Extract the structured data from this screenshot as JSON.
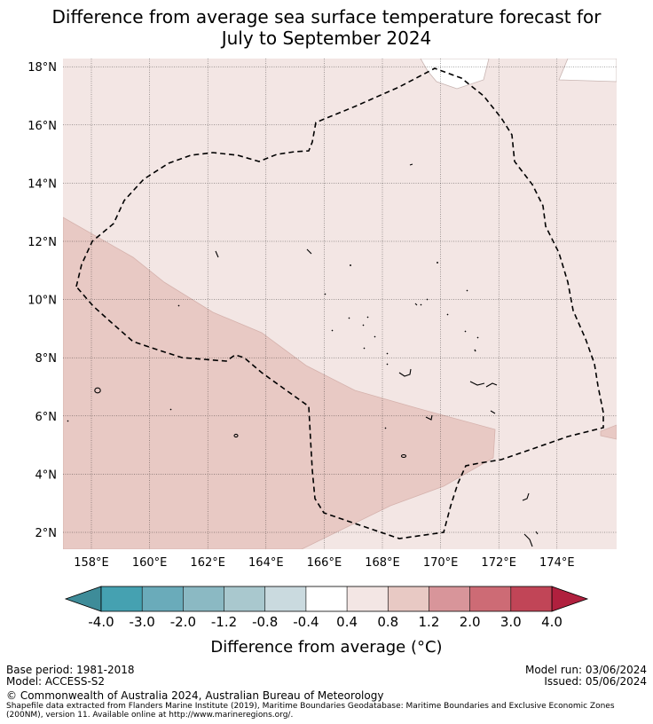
{
  "title": {
    "line1": "Difference from average sea surface temperature forecast for",
    "line2": "July to September 2024"
  },
  "map": {
    "lat_labels": [
      "2°N",
      "4°N",
      "6°N",
      "8°N",
      "10°N",
      "12°N",
      "14°N",
      "16°N",
      "18°N"
    ],
    "lat_values": [
      2,
      4,
      6,
      8,
      10,
      12,
      14,
      16,
      18
    ],
    "lon_labels": [
      "158°E",
      "160°E",
      "162°E",
      "164°E",
      "166°E",
      "168°E",
      "170°E",
      "172°E",
      "174°E"
    ],
    "lon_values": [
      158,
      160,
      162,
      164,
      166,
      168,
      170,
      172,
      174
    ],
    "lon_range": [
      157,
      176
    ],
    "lat_range": [
      1.5,
      18.4
    ],
    "anomaly_background": "0.4 to 0.8",
    "anomaly_southwest_band": "0.8 to 1.2",
    "colors": {
      "band_0_4_0_8": "#f3e6e4",
      "band_0_8_1_2": "#e8c9c4",
      "eez_boundary": "#000000",
      "gridline": "#000000"
    }
  },
  "colorbar": {
    "tick_labels": [
      "-4.0",
      "-3.0",
      "-2.0",
      "-1.2",
      "-0.8",
      "-0.4",
      "0.4",
      "0.8",
      "1.2",
      "2.0",
      "3.0",
      "4.0"
    ],
    "colors": [
      "#45a1b1",
      "#6aabba",
      "#8bb9c3",
      "#a9c8ce",
      "#cadadf",
      "#ffffff",
      "#f3e6e4",
      "#e8c9c4",
      "#d8959a",
      "#cd6b75",
      "#c14557"
    ],
    "under_color": "#3e8c99",
    "over_color": "#b0203e",
    "label": "Difference from average (°C)"
  },
  "footer": {
    "base_period": "Base period: 1981-2018",
    "model": "Model: ACCESS-S2",
    "model_run": "Model run: 03/06/2024",
    "issued": "Issued: 05/06/2024",
    "copyright": "© Commonwealth of Australia 2024, Australian Bureau of Meteorology",
    "shapefile_line1": "Shapefile data extracted from Flanders Marine Institute (2019), Maritime Boundaries Geodatabase: Maritime Boundaries and Exclusive Economic Zones",
    "shapefile_line2": "(200NM), version 11. Available online at http://www.marineregions.org/."
  }
}
